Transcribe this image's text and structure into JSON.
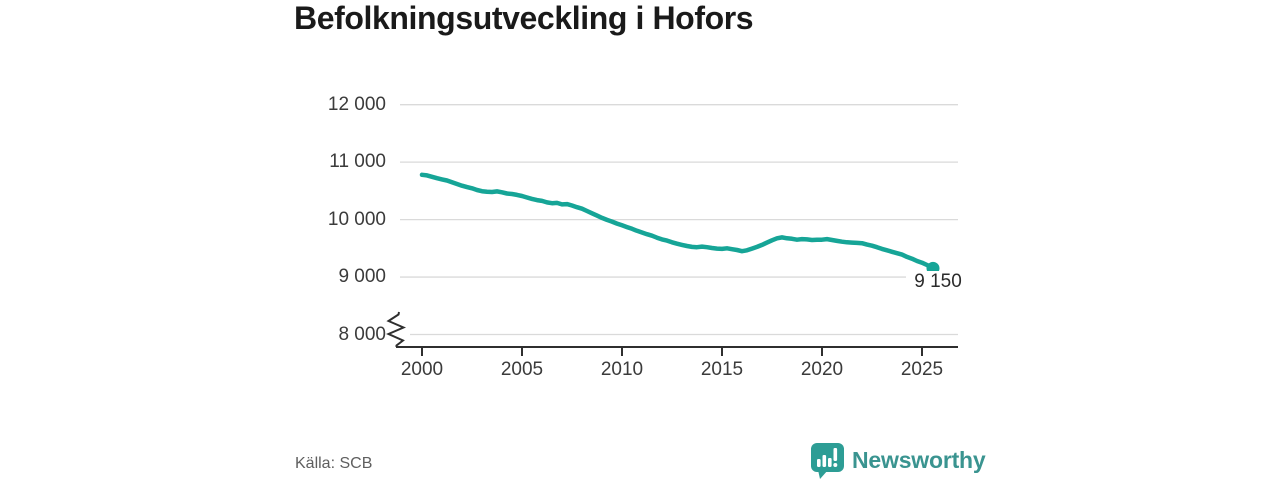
{
  "title": "Befolkningsutveckling i Hofors",
  "source": "Källa: SCB",
  "branding": {
    "name": "Newsworthy",
    "icon": "newsworthy-bubble-barchart-icon",
    "icon_color": "#2d9d95",
    "text_color": "#3a9490"
  },
  "chart_data": {
    "type": "line",
    "title": "Befolkningsutveckling i Hofors",
    "xlabel": "",
    "ylabel": "",
    "grid": "horizontal-only",
    "axis_break_below": 8000,
    "x_ticks": [
      2000,
      2005,
      2010,
      2015,
      2020,
      2025
    ],
    "x_tick_labels": [
      "2000",
      "2005",
      "2010",
      "2015",
      "2020",
      "2025"
    ],
    "y_ticks": [
      8000,
      9000,
      10000,
      11000,
      12000
    ],
    "y_tick_labels": [
      "8 000",
      "9 000",
      "10 000",
      "11 000",
      "12 000"
    ],
    "ylim": [
      8000,
      12000
    ],
    "xlim": [
      2000,
      2025.65
    ],
    "line_color": "#16a597",
    "gridline_color": "#dadada",
    "axis_color": "#2f2f2f",
    "end_label": "9 150",
    "end_value": 9150,
    "series": [
      {
        "name": "Befolkning",
        "points": [
          [
            2000.0,
            10780
          ],
          [
            2000.25,
            10770
          ],
          [
            2000.5,
            10745
          ],
          [
            2000.75,
            10720
          ],
          [
            2001.0,
            10700
          ],
          [
            2001.25,
            10680
          ],
          [
            2001.5,
            10650
          ],
          [
            2001.75,
            10620
          ],
          [
            2002.0,
            10590
          ],
          [
            2002.25,
            10565
          ],
          [
            2002.5,
            10545
          ],
          [
            2002.75,
            10515
          ],
          [
            2003.0,
            10495
          ],
          [
            2003.25,
            10485
          ],
          [
            2003.5,
            10480
          ],
          [
            2003.75,
            10490
          ],
          [
            2004.0,
            10475
          ],
          [
            2004.25,
            10455
          ],
          [
            2004.5,
            10445
          ],
          [
            2004.75,
            10430
          ],
          [
            2005.0,
            10410
          ],
          [
            2005.25,
            10385
          ],
          [
            2005.5,
            10360
          ],
          [
            2005.75,
            10340
          ],
          [
            2006.0,
            10325
          ],
          [
            2006.25,
            10300
          ],
          [
            2006.5,
            10285
          ],
          [
            2006.75,
            10290
          ],
          [
            2007.0,
            10265
          ],
          [
            2007.25,
            10270
          ],
          [
            2007.5,
            10245
          ],
          [
            2007.75,
            10215
          ],
          [
            2008.0,
            10190
          ],
          [
            2008.25,
            10150
          ],
          [
            2008.5,
            10110
          ],
          [
            2008.75,
            10070
          ],
          [
            2009.0,
            10030
          ],
          [
            2009.25,
            9995
          ],
          [
            2009.5,
            9965
          ],
          [
            2009.75,
            9930
          ],
          [
            2010.0,
            9900
          ],
          [
            2010.25,
            9870
          ],
          [
            2010.5,
            9840
          ],
          [
            2010.75,
            9805
          ],
          [
            2011.0,
            9775
          ],
          [
            2011.25,
            9745
          ],
          [
            2011.5,
            9720
          ],
          [
            2011.75,
            9685
          ],
          [
            2012.0,
            9655
          ],
          [
            2012.25,
            9635
          ],
          [
            2012.5,
            9605
          ],
          [
            2012.75,
            9580
          ],
          [
            2013.0,
            9560
          ],
          [
            2013.25,
            9540
          ],
          [
            2013.5,
            9525
          ],
          [
            2013.75,
            9520
          ],
          [
            2014.0,
            9530
          ],
          [
            2014.25,
            9520
          ],
          [
            2014.5,
            9505
          ],
          [
            2014.75,
            9495
          ],
          [
            2015.0,
            9490
          ],
          [
            2015.25,
            9500
          ],
          [
            2015.5,
            9485
          ],
          [
            2015.75,
            9470
          ],
          [
            2016.0,
            9450
          ],
          [
            2016.25,
            9465
          ],
          [
            2016.5,
            9495
          ],
          [
            2016.75,
            9525
          ],
          [
            2017.0,
            9560
          ],
          [
            2017.25,
            9600
          ],
          [
            2017.5,
            9640
          ],
          [
            2017.75,
            9675
          ],
          [
            2018.0,
            9690
          ],
          [
            2018.25,
            9675
          ],
          [
            2018.5,
            9665
          ],
          [
            2018.75,
            9650
          ],
          [
            2019.0,
            9660
          ],
          [
            2019.25,
            9655
          ],
          [
            2019.5,
            9645
          ],
          [
            2019.75,
            9650
          ],
          [
            2020.0,
            9650
          ],
          [
            2020.25,
            9660
          ],
          [
            2020.5,
            9645
          ],
          [
            2020.75,
            9630
          ],
          [
            2021.0,
            9615
          ],
          [
            2021.25,
            9605
          ],
          [
            2021.5,
            9600
          ],
          [
            2021.75,
            9595
          ],
          [
            2022.0,
            9590
          ],
          [
            2022.25,
            9565
          ],
          [
            2022.5,
            9545
          ],
          [
            2022.75,
            9520
          ],
          [
            2023.0,
            9490
          ],
          [
            2023.25,
            9465
          ],
          [
            2023.5,
            9440
          ],
          [
            2023.75,
            9415
          ],
          [
            2024.0,
            9390
          ],
          [
            2024.25,
            9350
          ],
          [
            2024.5,
            9320
          ],
          [
            2024.75,
            9280
          ],
          [
            2025.0,
            9250
          ],
          [
            2025.25,
            9210
          ],
          [
            2025.55,
            9150
          ]
        ]
      }
    ]
  }
}
